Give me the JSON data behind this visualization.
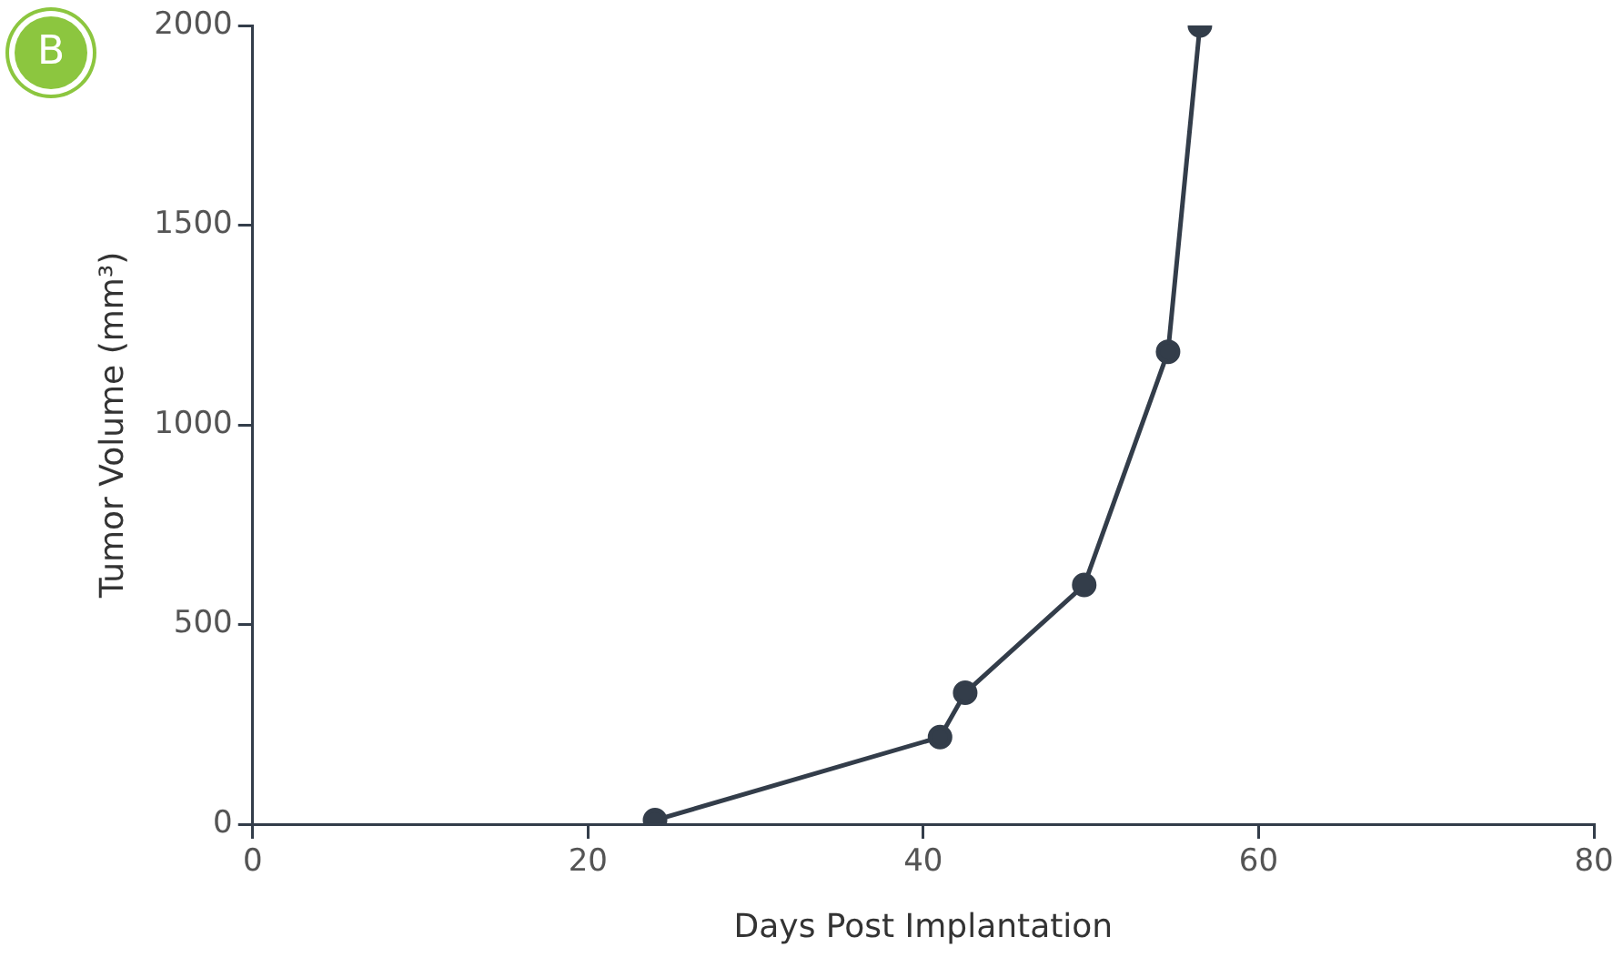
{
  "chart_data": {
    "type": "line",
    "xlabel": "Days Post Implantation",
    "ylabel": "Tumor Volume (mm³)",
    "annotations": [
      "B"
    ],
    "x": [
      24,
      41,
      42.5,
      49.6,
      54.6,
      56.5
    ],
    "series": [
      {
        "color": "#333d4a",
        "values": [
          10,
          218,
          329,
          599,
          1183,
          2000
        ]
      }
    ],
    "xlim": [
      0,
      80
    ],
    "xticks": [
      0,
      20,
      40,
      60,
      80
    ],
    "ylim": [
      0,
      2000
    ],
    "yticks": [
      0,
      500,
      1000,
      1500,
      2000
    ],
    "grid": false,
    "legend": false,
    "marker": "circle",
    "line_style": "solid"
  }
}
